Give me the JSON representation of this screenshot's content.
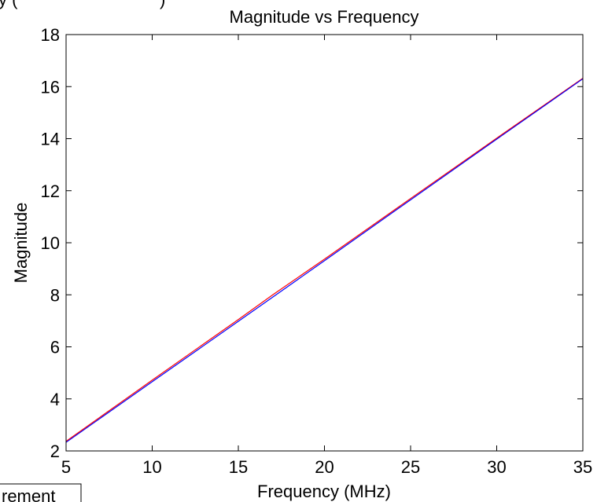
{
  "chart_data": {
    "type": "line",
    "title": "Magnitude vs Frequency",
    "xlabel": "Frequency (MHz)",
    "ylabel": "Magnitude",
    "xlim": [
      5,
      35
    ],
    "ylim": [
      2,
      18
    ],
    "xticks": [
      5,
      10,
      15,
      20,
      25,
      30,
      35
    ],
    "yticks": [
      2,
      4,
      6,
      8,
      10,
      12,
      14,
      16,
      18
    ],
    "grid": false,
    "series": [
      {
        "color": "#ff0000",
        "x": [
          5,
          10,
          15,
          17,
          20,
          25,
          30,
          35
        ],
        "y": [
          2.37,
          4.72,
          7.05,
          8.0,
          9.37,
          11.7,
          14.02,
          16.32
        ]
      },
      {
        "color": "#0000ff",
        "x": [
          5,
          10,
          15,
          20,
          25,
          30,
          35
        ],
        "y": [
          2.33,
          4.66,
          6.98,
          9.31,
          11.65,
          13.98,
          16.3
        ]
      }
    ]
  },
  "clipped_text": {
    "top_left": "y (",
    "top_right": ")",
    "bottom_left": "rement"
  }
}
